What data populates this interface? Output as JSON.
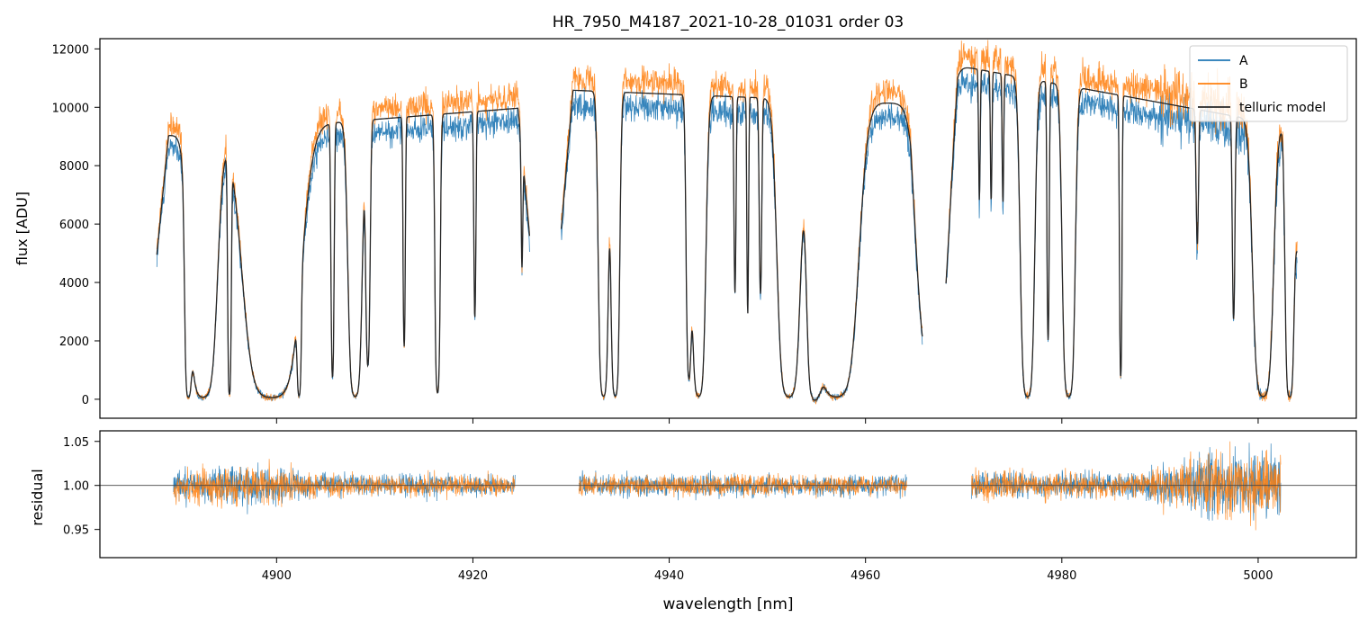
{
  "chart_data": [
    {
      "type": "line",
      "title": "HR_7950_M4187_2021-10-28_01031  order 03",
      "xlabel": "",
      "ylabel": "flux [ADU]",
      "xlim": [
        4882,
        5010
      ],
      "ylim": [
        -650,
        12350
      ],
      "xticks": [
        4900,
        4920,
        4940,
        4960,
        4980,
        5000
      ],
      "yticks": [
        0,
        2000,
        4000,
        6000,
        8000,
        10000,
        12000
      ],
      "ytick_labels": [
        "0",
        "2000",
        "4000",
        "6000",
        "8000",
        "10000",
        "12000"
      ],
      "legend_position": "top-right",
      "series": [
        {
          "name": "A",
          "color": "#1f77b4"
        },
        {
          "name": "B",
          "color": "#ff7f0e"
        },
        {
          "name": "telluric model",
          "color": "#262626"
        }
      ],
      "data_segments": [
        {
          "start": 4887.8,
          "end": 4925.8,
          "continuum_start": 9000,
          "continuum_end": 10000
        },
        {
          "start": 4929.0,
          "end": 4965.8,
          "continuum_start": 10600,
          "continuum_end": 10100
        },
        {
          "start": 4968.2,
          "end": 5004.0,
          "continuum_start": 11500,
          "continuum_end": 9300
        }
      ],
      "absorption_lines": [
        [
          4891.0,
          0.28,
          0.98
        ],
        [
          4892.5,
          1.1,
          1.15
        ],
        [
          4895.2,
          0.15,
          0.92
        ],
        [
          4899.5,
          2.2,
          1.2
        ],
        [
          4902.3,
          0.18,
          0.8
        ],
        [
          4905.7,
          0.15,
          0.6
        ],
        [
          4908.0,
          0.55,
          1.1
        ],
        [
          4909.3,
          0.22,
          0.5
        ],
        [
          4913.0,
          0.12,
          0.4
        ],
        [
          4916.4,
          0.22,
          0.9
        ],
        [
          4920.2,
          0.12,
          0.3
        ],
        [
          4925.0,
          0.1,
          0.15
        ],
        [
          4933.3,
          0.4,
          1.1
        ],
        [
          4934.5,
          0.35,
          1.1
        ],
        [
          4942.0,
          0.25,
          0.6
        ],
        [
          4943.0,
          0.55,
          1.1
        ],
        [
          4946.7,
          0.12,
          0.25
        ],
        [
          4948.0,
          0.1,
          0.3
        ],
        [
          4949.3,
          0.15,
          0.25
        ],
        [
          4952.2,
          0.9,
          1.15
        ],
        [
          4954.8,
          0.6,
          1.15
        ],
        [
          4957.0,
          1.7,
          1.15
        ],
        [
          4966.7,
          1.4,
          0.35
        ],
        [
          4971.6,
          0.1,
          0.12
        ],
        [
          4972.8,
          0.1,
          0.12
        ],
        [
          4974.0,
          0.1,
          0.12
        ],
        [
          4976.5,
          0.55,
          1.15
        ],
        [
          4978.6,
          0.12,
          0.4
        ],
        [
          4980.7,
          0.5,
          1.15
        ],
        [
          4986.0,
          0.12,
          0.62
        ],
        [
          4993.8,
          0.15,
          0.15
        ],
        [
          4997.5,
          0.15,
          0.3
        ],
        [
          5000.5,
          0.8,
          1.1
        ],
        [
          5003.2,
          0.35,
          1.1
        ]
      ]
    },
    {
      "type": "line",
      "title": "",
      "xlabel": "wavelength [nm]",
      "ylabel": "residual",
      "xlim": [
        4882,
        5010
      ],
      "ylim": [
        0.918,
        1.062
      ],
      "xticks": [
        4900,
        4920,
        4940,
        4960,
        4980,
        5000
      ],
      "xtick_labels": [
        "4900",
        "4920",
        "4940",
        "4960",
        "4980",
        "5000"
      ],
      "yticks": [
        0.95,
        1.0,
        1.05
      ],
      "ytick_labels": [
        "0.95",
        "1.00",
        "1.05"
      ],
      "reference_line": 1.0,
      "series": [
        {
          "name": "A",
          "color": "#1f77b4"
        },
        {
          "name": "B",
          "color": "#ff7f0e"
        }
      ],
      "data_segments": [
        {
          "start": 4889.5,
          "end": 4924.3
        },
        {
          "start": 4930.8,
          "end": 4964.2
        },
        {
          "start": 4970.8,
          "end": 5002.3
        }
      ],
      "noise_profile": [
        [
          4889.5,
          0.016
        ],
        [
          4897.0,
          0.021
        ],
        [
          4905.0,
          0.012
        ],
        [
          4924.3,
          0.01
        ],
        [
          4930.8,
          0.011
        ],
        [
          4964.2,
          0.01
        ],
        [
          4970.8,
          0.014
        ],
        [
          4988.0,
          0.013
        ],
        [
          4994.0,
          0.03
        ],
        [
          5002.3,
          0.035
        ]
      ]
    }
  ]
}
